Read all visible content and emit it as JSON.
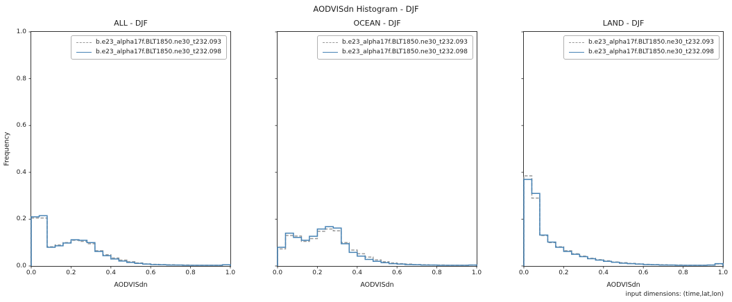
{
  "figure": {
    "suptitle": "AODVISdn Histogram - DJF",
    "footnote": "input dimensions: (time,lat,lon)"
  },
  "chart_data": [
    {
      "type": "step-histogram",
      "title": "ALL - DJF",
      "xlabel": "AODVISdn",
      "ylabel": "Frequency",
      "xlim": [
        0,
        1
      ],
      "ylim": [
        0,
        1
      ],
      "xticks": [
        "0.0",
        "0.2",
        "0.4",
        "0.6",
        "0.8",
        "1.0"
      ],
      "yticks": [
        "0.0",
        "0.2",
        "0.4",
        "0.6",
        "0.8",
        "1.0"
      ],
      "show_y_tick_labels": true,
      "legend_position": "upper right",
      "grid": false,
      "bin_start": 0.0,
      "bin_width": 0.04,
      "series": [
        {
          "name": "b.e23_alpha17f.BLT1850.ne30_t232.093",
          "style": "dashed",
          "color": "#999999",
          "values": [
            0.205,
            0.205,
            0.082,
            0.09,
            0.1,
            0.11,
            0.105,
            0.095,
            0.065,
            0.048,
            0.034,
            0.025,
            0.018,
            0.013,
            0.009,
            0.007,
            0.006,
            0.005,
            0.004,
            0.004,
            0.003,
            0.003,
            0.003,
            0.003,
            0.005
          ]
        },
        {
          "name": "b.e23_alpha17f.BLT1850.ne30_t232.098",
          "style": "solid",
          "color": "#4682b4",
          "values": [
            0.21,
            0.215,
            0.08,
            0.086,
            0.098,
            0.112,
            0.11,
            0.1,
            0.062,
            0.044,
            0.03,
            0.021,
            0.015,
            0.011,
            0.008,
            0.006,
            0.005,
            0.004,
            0.004,
            0.003,
            0.003,
            0.003,
            0.003,
            0.003,
            0.005
          ]
        }
      ]
    },
    {
      "type": "step-histogram",
      "title": "OCEAN - DJF",
      "xlabel": "AODVISdn",
      "xlim": [
        0,
        1
      ],
      "ylim": [
        0,
        1
      ],
      "xticks": [
        "0.0",
        "0.2",
        "0.4",
        "0.6",
        "0.8",
        "1.0"
      ],
      "yticks": [
        "0.0",
        "0.2",
        "0.4",
        "0.6",
        "0.8",
        "1.0"
      ],
      "show_y_tick_labels": false,
      "legend_position": "upper right",
      "grid": false,
      "bin_start": 0.0,
      "bin_width": 0.04,
      "series": [
        {
          "name": "b.e23_alpha17f.BLT1850.ne30_t232.093",
          "style": "dashed",
          "color": "#999999",
          "values": [
            0.073,
            0.13,
            0.128,
            0.105,
            0.117,
            0.148,
            0.158,
            0.15,
            0.1,
            0.068,
            0.052,
            0.038,
            0.026,
            0.018,
            0.013,
            0.01,
            0.008,
            0.006,
            0.005,
            0.004,
            0.004,
            0.003,
            0.003,
            0.003,
            0.004
          ]
        },
        {
          "name": "b.e23_alpha17f.BLT1850.ne30_t232.098",
          "style": "solid",
          "color": "#4682b4",
          "values": [
            0.08,
            0.14,
            0.122,
            0.11,
            0.127,
            0.158,
            0.168,
            0.162,
            0.095,
            0.058,
            0.042,
            0.028,
            0.02,
            0.014,
            0.01,
            0.008,
            0.006,
            0.005,
            0.004,
            0.004,
            0.003,
            0.003,
            0.003,
            0.003,
            0.004
          ]
        }
      ]
    },
    {
      "type": "step-histogram",
      "title": "LAND - DJF",
      "xlabel": "AODVISdn",
      "xlim": [
        0,
        1
      ],
      "ylim": [
        0,
        1
      ],
      "xticks": [
        "0.0",
        "0.2",
        "0.4",
        "0.6",
        "0.8",
        "1.0"
      ],
      "yticks": [
        "0.0",
        "0.2",
        "0.4",
        "0.6",
        "0.8",
        "1.0"
      ],
      "show_y_tick_labels": false,
      "legend_position": "upper right",
      "grid": false,
      "bin_start": 0.0,
      "bin_width": 0.04,
      "series": [
        {
          "name": "b.e23_alpha17f.BLT1850.ne30_t232.093",
          "style": "dashed",
          "color": "#999999",
          "values": [
            0.385,
            0.29,
            0.13,
            0.1,
            0.082,
            0.065,
            0.052,
            0.042,
            0.033,
            0.027,
            0.022,
            0.017,
            0.014,
            0.011,
            0.009,
            0.007,
            0.006,
            0.005,
            0.004,
            0.004,
            0.003,
            0.003,
            0.003,
            0.004,
            0.009
          ]
        },
        {
          "name": "b.e23_alpha17f.BLT1850.ne30_t232.098",
          "style": "solid",
          "color": "#4682b4",
          "values": [
            0.37,
            0.31,
            0.132,
            0.102,
            0.08,
            0.062,
            0.05,
            0.04,
            0.031,
            0.025,
            0.02,
            0.016,
            0.012,
            0.01,
            0.008,
            0.006,
            0.005,
            0.004,
            0.004,
            0.003,
            0.003,
            0.003,
            0.003,
            0.004,
            0.01
          ]
        }
      ]
    }
  ]
}
